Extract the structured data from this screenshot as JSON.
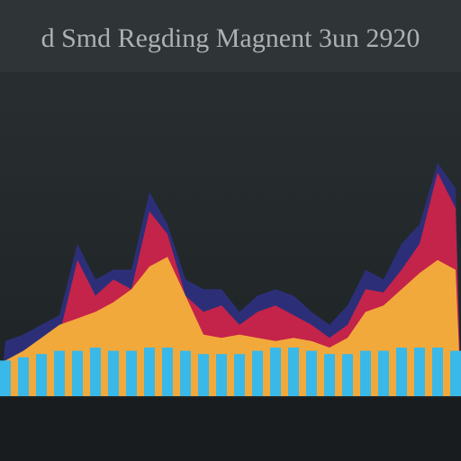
{
  "chart_data": {
    "type": "area",
    "title": "d Smd Regding Magnent 3un 2920",
    "categories": [
      null,
      null,
      null,
      null,
      null,
      null,
      null,
      null,
      null,
      null,
      null,
      null,
      null,
      null,
      null,
      null,
      null,
      null,
      null,
      null,
      null,
      null,
      null,
      null,
      null,
      null
    ],
    "ylim": [
      0,
      100
    ],
    "series": [
      {
        "color": "#2c2f78",
        "values": [
          17,
          19,
          22,
          25,
          47,
          36,
          39,
          39,
          63,
          53,
          36,
          33,
          33,
          26,
          31,
          33,
          31,
          26,
          22,
          28,
          39,
          36,
          47,
          53,
          72,
          64
        ]
      },
      {
        "color": "#c4234a",
        "values": [
          8,
          13,
          17,
          19,
          42,
          31,
          36,
          33,
          57,
          50,
          31,
          26,
          28,
          22,
          26,
          28,
          25,
          22,
          18,
          22,
          33,
          32,
          39,
          47,
          69,
          58
        ]
      },
      {
        "color": "#f2a93b",
        "values": [
          11,
          14,
          18,
          22,
          24,
          26,
          29,
          33,
          40,
          43,
          31,
          19,
          18,
          19,
          18,
          17,
          18,
          17,
          15,
          18,
          26,
          28,
          33,
          38,
          42,
          39
        ]
      },
      {
        "type": "bar",
        "color": "#3ab8e8",
        "values": [
          11,
          12,
          13,
          14,
          14,
          15,
          14,
          14,
          15,
          15,
          14,
          13,
          13,
          13,
          14,
          15,
          15,
          14,
          13,
          13,
          14,
          14,
          15,
          15,
          15,
          14
        ]
      }
    ]
  }
}
